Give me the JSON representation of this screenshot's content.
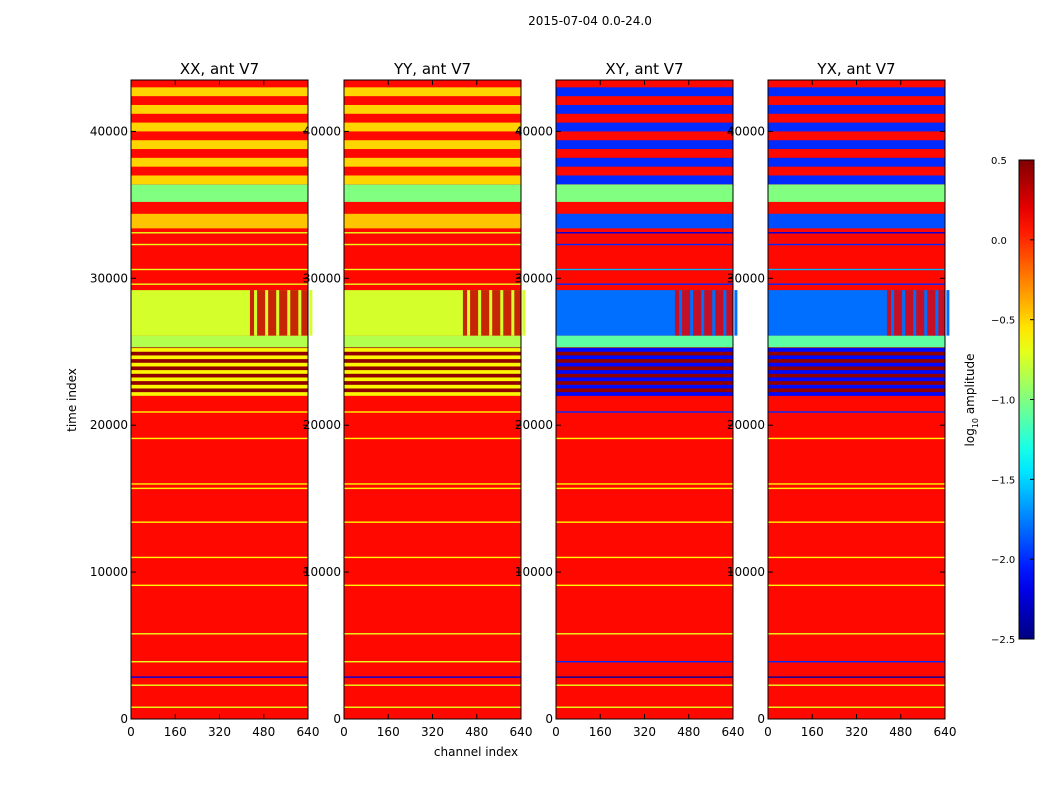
{
  "chart_data": {
    "type": "heatmap",
    "suptitle": "2015-07-04 0.0-24.0",
    "xlabel": "channel index",
    "ylabel": "time index",
    "xlim": [
      0,
      640
    ],
    "ylim": [
      0,
      43500
    ],
    "x_ticks": [
      0,
      160,
      320,
      480,
      640
    ],
    "y_ticks": [
      0,
      10000,
      20000,
      30000,
      40000
    ],
    "colorbar": {
      "label_prefix": "log",
      "label_sub": "10",
      "label_suffix": " amplitude",
      "range": [
        -2.5,
        0.5
      ],
      "ticks": [
        0.5,
        0.0,
        -0.5,
        -1.0,
        -1.5,
        -2.0,
        -2.5
      ],
      "tick_labels": [
        "0.5",
        "0.0",
        "−0.5",
        "−1.0",
        "−1.5",
        "−2.0",
        "−2.5"
      ],
      "colormap": "jet"
    },
    "panels": [
      {
        "title": "XX, ant V7",
        "kind": "parallel"
      },
      {
        "title": "YY, ant V7",
        "kind": "parallel"
      },
      {
        "title": "XY, ant V7",
        "kind": "cross"
      },
      {
        "title": "YX, ant V7",
        "kind": "cross"
      }
    ],
    "baseline_value": 0.1,
    "regions": {
      "parallel": [
        {
          "t0": 0,
          "t1": 22000,
          "base": 0.1,
          "lines": [
            {
              "t": 800,
              "v": -0.7
            },
            {
              "t": 2300,
              "v": -0.7
            },
            {
              "t": 2850,
              "v": -2.2
            },
            {
              "t": 3900,
              "v": -0.7
            },
            {
              "t": 5800,
              "v": -0.7
            },
            {
              "t": 9100,
              "v": -0.6
            },
            {
              "t": 11000,
              "v": -0.6
            },
            {
              "t": 13400,
              "v": -0.6
            },
            {
              "t": 15700,
              "v": -0.6
            },
            {
              "t": 16000,
              "v": -0.6
            },
            {
              "t": 19100,
              "v": -0.6
            },
            {
              "t": 20900,
              "v": -0.6
            }
          ]
        },
        {
          "t0": 22000,
          "t1": 25300,
          "base": 0.45,
          "stripe": -0.6,
          "stripe_step": 250
        },
        {
          "t0": 25300,
          "t1": 26100,
          "base": -0.85
        },
        {
          "t0": 26100,
          "t1": 29200,
          "base": -0.75,
          "bright_from": 430,
          "bright_value": 0.3
        },
        {
          "t0": 29200,
          "t1": 33400,
          "base": 0.1,
          "lines": [
            {
              "t": 29600,
              "v": -0.7
            },
            {
              "t": 30600,
              "v": -0.7
            },
            {
              "t": 32300,
              "v": -0.7
            },
            {
              "t": 33100,
              "v": -0.7
            }
          ]
        },
        {
          "t0": 33400,
          "t1": 34400,
          "base": -0.45
        },
        {
          "t0": 34400,
          "t1": 35200,
          "base": 0.1
        },
        {
          "t0": 35200,
          "t1": 36400,
          "base": -1.0
        },
        {
          "t0": 36400,
          "t1": 43500,
          "base": 0.1,
          "stripe": -0.5,
          "stripe_step": 600
        }
      ],
      "cross": [
        {
          "t0": 0,
          "t1": 22000,
          "base": 0.1,
          "lines": [
            {
              "t": 800,
              "v": -0.7
            },
            {
              "t": 2300,
              "v": -0.7
            },
            {
              "t": 2850,
              "v": -2.4
            },
            {
              "t": 3900,
              "v": -2.0
            },
            {
              "t": 5800,
              "v": -0.7
            },
            {
              "t": 9100,
              "v": -0.6
            },
            {
              "t": 11000,
              "v": -0.6
            },
            {
              "t": 13400,
              "v": -0.6
            },
            {
              "t": 15700,
              "v": -0.6
            },
            {
              "t": 16000,
              "v": -0.6
            },
            {
              "t": 19100,
              "v": -0.6
            },
            {
              "t": 20900,
              "v": -2.0
            }
          ]
        },
        {
          "t0": 22000,
          "t1": 25300,
          "base": 0.45,
          "stripe": -2.1,
          "stripe_step": 250
        },
        {
          "t0": 25300,
          "t1": 26100,
          "base": -1.1
        },
        {
          "t0": 26100,
          "t1": 29200,
          "base": -1.8,
          "bright_from": 430,
          "bright_value": 0.2
        },
        {
          "t0": 29200,
          "t1": 33400,
          "base": 0.1,
          "lines": [
            {
              "t": 29600,
              "v": -2.0
            },
            {
              "t": 30600,
              "v": -1.6
            },
            {
              "t": 32300,
              "v": -2.0
            },
            {
              "t": 33100,
              "v": -2.2
            }
          ]
        },
        {
          "t0": 33400,
          "t1": 34400,
          "base": -1.9
        },
        {
          "t0": 34400,
          "t1": 35200,
          "base": 0.1
        },
        {
          "t0": 35200,
          "t1": 36400,
          "base": -1.0
        },
        {
          "t0": 36400,
          "t1": 43500,
          "base": 0.1,
          "stripe": -2.0,
          "stripe_step": 600
        }
      ]
    }
  }
}
